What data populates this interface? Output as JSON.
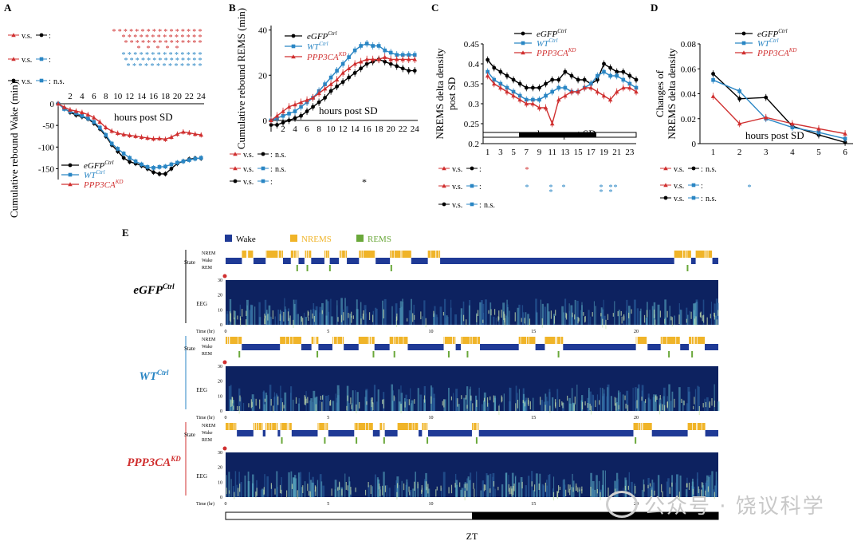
{
  "panels": {
    "A": "A",
    "B": "B",
    "C": "C",
    "D": "D",
    "E": "E"
  },
  "legend": {
    "eGFP": "eGFP",
    "WT": "WT",
    "PPP3CA": "PPP3CA",
    "ctrl": "Ctrl",
    "kd": "KD"
  },
  "colors": {
    "eGFP": "#000000",
    "WT": "#2a86c4",
    "PPP3CA": "#d03030",
    "wake": "#1f3a96",
    "nrems": "#f0b428",
    "rems": "#6aa83a"
  },
  "stats": {
    "vs": "v.s.",
    "ns": "n.s.",
    "star": "*"
  },
  "panelE": {
    "legend": [
      "Wake",
      "NREMS",
      "REMS"
    ],
    "row_labels": [
      "NREM",
      "Wake",
      "REM"
    ],
    "state_label": "State",
    "eeg_label": "EEG",
    "time_label": "Time (hr)",
    "time_ticks": [
      "0",
      "5",
      "10",
      "15",
      "20"
    ],
    "eeg_ticks": [
      "30",
      "20",
      "10",
      "0"
    ],
    "xlabel": "ZT"
  },
  "watermark": "公众号 · 饶议科学",
  "chart_data": [
    {
      "id": "A",
      "type": "line",
      "ylabel": "Cumulative rebound Wake (min)",
      "xlabel": "hours post SD",
      "xlim": [
        0,
        24.5
      ],
      "ylim": [
        -175,
        0
      ],
      "xticks": [
        2,
        4,
        6,
        8,
        10,
        12,
        14,
        16,
        18,
        20,
        22,
        24
      ],
      "yticks": [
        0,
        -50,
        -100,
        -150
      ],
      "x": [
        0,
        1,
        2,
        3,
        4,
        5,
        6,
        7,
        8,
        9,
        10,
        11,
        12,
        13,
        14,
        15,
        16,
        17,
        18,
        19,
        20,
        21,
        22,
        23,
        24
      ],
      "series": [
        {
          "name": "eGFP",
          "color": "#000000",
          "values": [
            0,
            -10,
            -20,
            -26,
            -30,
            -35,
            -45,
            -58,
            -75,
            -95,
            -110,
            -125,
            -134,
            -138,
            -143,
            -150,
            -158,
            -162,
            -162,
            -150,
            -138,
            -133,
            -128,
            -126,
            -126
          ]
        },
        {
          "name": "WT",
          "color": "#2a86c4",
          "values": [
            0,
            -12,
            -18,
            -22,
            -28,
            -34,
            -42,
            -55,
            -72,
            -92,
            -104,
            -115,
            -125,
            -133,
            -140,
            -146,
            -148,
            -146,
            -145,
            -140,
            -136,
            -133,
            -130,
            -127,
            -125
          ]
        },
        {
          "name": "PPP3CA",
          "color": "#d03030",
          "values": [
            0,
            -8,
            -14,
            -17,
            -20,
            -25,
            -32,
            -42,
            -55,
            -63,
            -68,
            -71,
            -73,
            -75,
            -77,
            -79,
            -81,
            -80,
            -82,
            -77,
            -70,
            -65,
            -67,
            -70,
            -72
          ]
        }
      ],
      "stats_note": {
        "rows": [
          "PPP3CA v.s. eGFP",
          "PPP3CA v.s. WT",
          "eGFP v.s. WT: n.s."
        ]
      }
    },
    {
      "id": "B",
      "type": "line",
      "ylabel": "Cumulative rebound REMS (min)",
      "xlabel": "hours post SD",
      "xlim": [
        0,
        24.5
      ],
      "ylim": [
        -5,
        42
      ],
      "xticks": [
        2,
        4,
        6,
        8,
        10,
        12,
        14,
        16,
        18,
        20,
        22,
        24
      ],
      "yticks": [
        0,
        20,
        40
      ],
      "x": [
        0,
        1,
        2,
        3,
        4,
        5,
        6,
        7,
        8,
        9,
        10,
        11,
        12,
        13,
        14,
        15,
        16,
        17,
        18,
        19,
        20,
        21,
        22,
        23,
        24
      ],
      "series": [
        {
          "name": "eGFP",
          "color": "#000000",
          "values": [
            -2,
            -2,
            -1,
            0,
            1,
            2,
            4,
            6,
            8,
            10,
            13,
            15,
            17,
            19,
            21,
            23,
            25,
            26,
            27,
            26,
            25,
            24,
            23,
            22,
            22
          ]
        },
        {
          "name": "WT",
          "color": "#2a86c4",
          "values": [
            0,
            1,
            2,
            3,
            4,
            6,
            8,
            10,
            13,
            16,
            19,
            22,
            25,
            28,
            31,
            33,
            34,
            33,
            33,
            31,
            30,
            29,
            29,
            29,
            29
          ]
        },
        {
          "name": "PPP3CA",
          "color": "#d03030",
          "values": [
            0,
            2,
            4,
            6,
            7,
            8,
            9,
            10,
            12,
            14,
            16,
            18,
            21,
            23,
            25,
            26,
            27,
            27,
            27,
            28,
            27,
            27,
            27,
            27,
            27
          ]
        }
      ]
    },
    {
      "id": "C",
      "type": "line",
      "ylabel": "NREMS delta density post SD",
      "xlabel": "hours post SD",
      "xlim": [
        0.3,
        24
      ],
      "ylim": [
        0.2,
        0.45
      ],
      "xticks": [
        1,
        3,
        5,
        7,
        9,
        11,
        13,
        15,
        17,
        19,
        21,
        23
      ],
      "yticks": [
        0.2,
        0.25,
        0.3,
        0.35,
        0.4,
        0.45
      ],
      "x": [
        1,
        2,
        3,
        4,
        5,
        6,
        7,
        8,
        9,
        10,
        11,
        12,
        13,
        14,
        15,
        16,
        17,
        18,
        19,
        20,
        21,
        22,
        23,
        24
      ],
      "series": [
        {
          "name": "eGFP",
          "color": "#000000",
          "values": [
            0.41,
            0.39,
            0.38,
            0.37,
            0.36,
            0.35,
            0.34,
            0.34,
            0.34,
            0.35,
            0.36,
            0.36,
            0.38,
            0.37,
            0.36,
            0.36,
            0.35,
            0.36,
            0.4,
            0.39,
            0.38,
            0.38,
            0.37,
            0.36
          ]
        },
        {
          "name": "WT",
          "color": "#2a86c4",
          "values": [
            0.38,
            0.36,
            0.35,
            0.34,
            0.33,
            0.32,
            0.31,
            0.31,
            0.31,
            0.32,
            0.33,
            0.34,
            0.34,
            0.33,
            0.33,
            0.34,
            0.35,
            0.37,
            0.38,
            0.37,
            0.37,
            0.36,
            0.35,
            0.34
          ]
        },
        {
          "name": "PPP3CA",
          "color": "#d03030",
          "values": [
            0.37,
            0.35,
            0.34,
            0.33,
            0.32,
            0.31,
            0.3,
            0.3,
            0.29,
            0.29,
            0.25,
            0.31,
            0.32,
            0.33,
            0.33,
            0.34,
            0.34,
            0.33,
            0.32,
            0.31,
            0.33,
            0.34,
            0.34,
            0.33
          ]
        }
      ]
    },
    {
      "id": "D",
      "type": "line",
      "ylabel": "Changes of NREMS delta density",
      "xlabel": "hours post SD",
      "xlim": [
        0.5,
        6.3
      ],
      "ylim": [
        0,
        0.08
      ],
      "xticks": [
        1,
        2,
        3,
        4,
        5,
        6
      ],
      "yticks": [
        0,
        0.02,
        0.04,
        0.06,
        0.08
      ],
      "x": [
        1,
        2,
        3,
        4,
        5,
        6
      ],
      "series": [
        {
          "name": "eGFP",
          "color": "#000000",
          "values": [
            0.056,
            0.036,
            0.037,
            0.014,
            0.007,
            0.001
          ]
        },
        {
          "name": "WT",
          "color": "#2a86c4",
          "values": [
            0.051,
            0.042,
            0.02,
            0.013,
            0.009,
            0.004
          ]
        },
        {
          "name": "PPP3CA",
          "color": "#d03030",
          "values": [
            0.038,
            0.016,
            0.021,
            0.016,
            0.012,
            0.008
          ]
        }
      ]
    }
  ]
}
